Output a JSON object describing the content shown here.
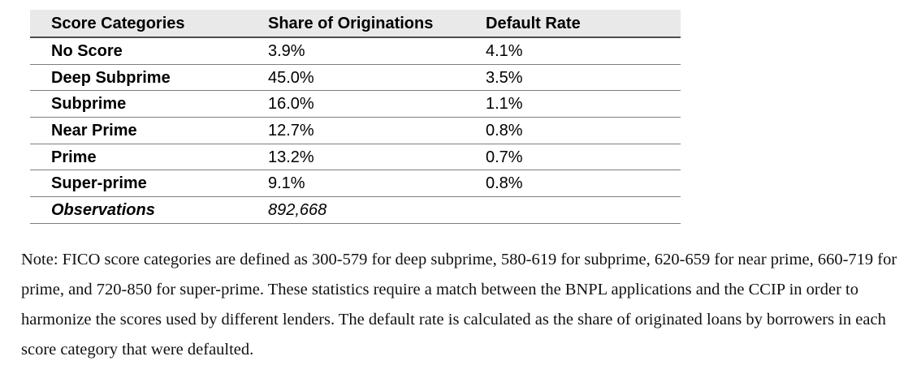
{
  "table": {
    "headers": {
      "category": "Score Categories",
      "share": "Share of Originations",
      "rate": "Default Rate"
    },
    "rows": [
      {
        "category": "No Score",
        "share": "3.9%",
        "rate": "4.1%"
      },
      {
        "category": "Deep Subprime",
        "share": "45.0%",
        "rate": "3.5%"
      },
      {
        "category": "Subprime",
        "share": "16.0%",
        "rate": "1.1%"
      },
      {
        "category": "Near Prime",
        "share": "12.7%",
        "rate": "0.8%"
      },
      {
        "category": "Prime",
        "share": "13.2%",
        "rate": "0.7%"
      },
      {
        "category": "Super-prime",
        "share": "9.1%",
        "rate": "0.8%"
      }
    ],
    "footer": {
      "label": "Observations",
      "value": "892,668",
      "rate": ""
    }
  },
  "note": "Note: FICO score categories are defined as 300-579 for deep subprime, 580-619 for subprime, 620-659 for near prime, 660-719 for prime, and 720-850 for super-prime. These statistics require a match between the BNPL applications and the CCIP in order to harmonize the scores used by different lenders. The default rate is calculated as the share of originated loans by borrowers in each score category that were defaulted.",
  "colors": {
    "header_background": "#e9e9e9",
    "header_rule": "#4d4d4d",
    "row_rule": "#7e7e7e",
    "text": "#000000"
  },
  "chart_data": {
    "type": "table",
    "title": "",
    "columns": [
      "Score Categories",
      "Share of Originations",
      "Default Rate"
    ],
    "categories": [
      "No Score",
      "Deep Subprime",
      "Subprime",
      "Near Prime",
      "Prime",
      "Super-prime"
    ],
    "series": [
      {
        "name": "Share of Originations (%)",
        "values": [
          3.9,
          45.0,
          16.0,
          12.7,
          13.2,
          9.1
        ]
      },
      {
        "name": "Default Rate (%)",
        "values": [
          4.1,
          3.5,
          1.1,
          0.8,
          0.7,
          0.8
        ]
      }
    ],
    "observations": 892668
  }
}
